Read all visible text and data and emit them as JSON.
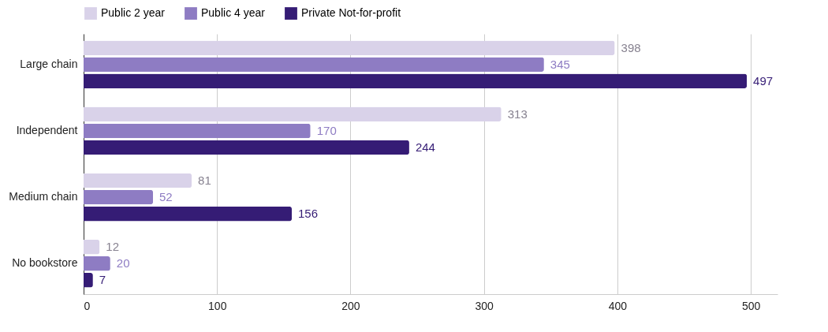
{
  "chart_data": {
    "type": "bar",
    "orientation": "horizontal",
    "categories": [
      "Large chain",
      "Independent",
      "Medium chain",
      "No bookstore"
    ],
    "series": [
      {
        "name": "Public 2 year",
        "color": "#d9d2e9",
        "values": [
          398,
          313,
          81,
          12
        ]
      },
      {
        "name": "Public 4 year",
        "color": "#8e7cc3",
        "values": [
          345,
          170,
          52,
          20
        ]
      },
      {
        "name": "Private Not-for-profit",
        "color": "#351c75",
        "values": [
          497,
          244,
          156,
          7
        ]
      }
    ],
    "xlim": [
      0,
      520
    ],
    "xticks": [
      0,
      100,
      200,
      300,
      400,
      500
    ],
    "grid": "x",
    "legend": "top",
    "data_labels": true
  }
}
